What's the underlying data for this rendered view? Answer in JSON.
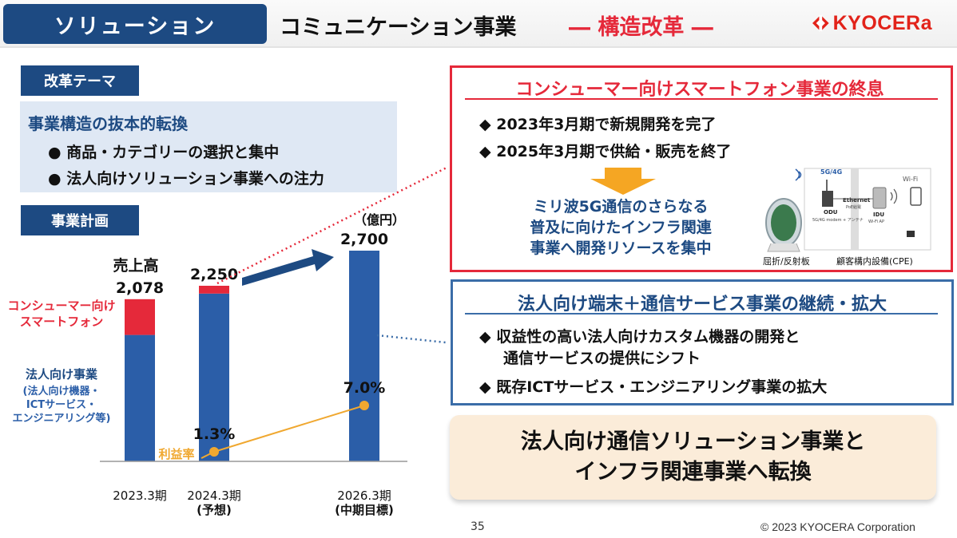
{
  "header": {
    "tag": "ソリューション",
    "title": "コミュニケーション事業",
    "accent": "― 構造改革 ―",
    "logo": "KYOCERa"
  },
  "theme": {
    "tag": "改革テーマ",
    "heading": "事業構造の抜本的転換",
    "bullets": [
      "● 商品・カテゴリーの選択と集中",
      "● 法人向けソリューション事業への注力"
    ]
  },
  "plan": {
    "tag": "事業計画"
  },
  "chart_labels": {
    "unit": "（億円）",
    "sales_label": "売上高",
    "consumer_label_1": "コンシューマー向け",
    "consumer_label_2": "スマートフォン",
    "corp_label": "法人向け事業",
    "corp_sub_1": "(法人向け機器・",
    "corp_sub_2": "ICTサービス・",
    "corp_sub_3": "エンジニアリング等)",
    "margin_label": "利益率",
    "period_sub_2": "(予想)",
    "period_sub_3": "(中期目標)"
  },
  "chart_data": {
    "type": "bar",
    "categories": [
      "2023.3期",
      "2024.3期",
      "2026.3期"
    ],
    "series": [
      {
        "name": "法人向け事業",
        "values": [
          1620,
          2150,
          2700
        ]
      },
      {
        "name": "コンシューマー向けスマートフォン",
        "values": [
          458,
          100,
          0
        ]
      }
    ],
    "totals": [
      "2,078",
      "2,250",
      "2,700"
    ],
    "ylim": [
      0,
      2700
    ],
    "margin_series": {
      "name": "利益率",
      "values": [
        null,
        1.3,
        7.0
      ],
      "labels": [
        "",
        "1.3%",
        "7.0%"
      ]
    },
    "colors": {
      "corporate": "#2b5ea8",
      "consumer": "#e5293a",
      "margin": "#f0a830"
    }
  },
  "box_consumer": {
    "title": "コンシューマー向けスマートフォン事業の終息",
    "bullets": [
      "◆ 2023年3月期で新規開発を完了",
      "◆ 2025年3月期で供給・販売を終了"
    ],
    "focus_lines": [
      "ミリ波5G通信のさらなる",
      "普及に向けたインフラ関連",
      "事業へ開発リソースを集中"
    ],
    "diagram": {
      "badge": "5G/4G",
      "ethernet": "Ethernet",
      "poe": "PoE給電",
      "wifi": "Wi-Fi",
      "odu": "ODU",
      "odu_sub": "5G/4G modem + アンテナ",
      "idu": "IDU",
      "idu_sub": "Wi-Fi AP",
      "reflector_caption": "屈折/反射板",
      "cpe_caption": "顧客構内設備(CPE)"
    }
  },
  "box_corporate": {
    "title": "法人向け端末＋通信サービス事業の継続・拡大",
    "bullet1_line1": "◆ 収益性の高い法人向けカスタム機器の開発と",
    "bullet1_line2": "通信サービスの提供にシフト",
    "bullet2": "◆ 既存ICTサービス・エンジニアリング事業の拡大"
  },
  "conclusion": {
    "line1": "法人向け通信ソリューション事業と",
    "line2": "インフラ関連事業へ転換"
  },
  "footer": {
    "page": "35",
    "copyright": "© 2023 KYOCERA Corporation"
  }
}
